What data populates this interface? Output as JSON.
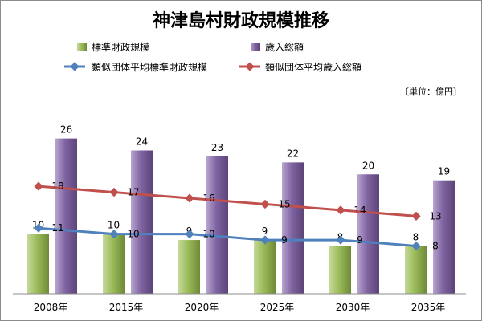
{
  "chart_data": {
    "type": "bar",
    "title": "神津島村財政規模推移",
    "unit_note": "〔単位：億円〕",
    "categories": [
      "2008年",
      "2015年",
      "2020年",
      "2025年",
      "2030年",
      "2035年"
    ],
    "ylim": [
      0,
      32
    ],
    "grid": false,
    "legend_position": "top",
    "series": [
      {
        "name": "標準財政規模",
        "kind": "bar",
        "values": [
          10,
          10,
          9,
          9,
          8,
          8
        ],
        "color": "#9bbb59"
      },
      {
        "name": "歳入総額",
        "kind": "bar",
        "values": [
          26,
          24,
          23,
          22,
          20,
          19
        ],
        "color": "#8064a2"
      },
      {
        "name": "類似団体平均標準財政規模",
        "kind": "line",
        "values": [
          11,
          10,
          10,
          9,
          9,
          8
        ],
        "color": "#4f81bd"
      },
      {
        "name": "類似団体平均歳入総額",
        "kind": "line",
        "values": [
          18,
          17,
          16,
          15,
          14,
          13
        ],
        "color": "#c0504d"
      }
    ]
  }
}
